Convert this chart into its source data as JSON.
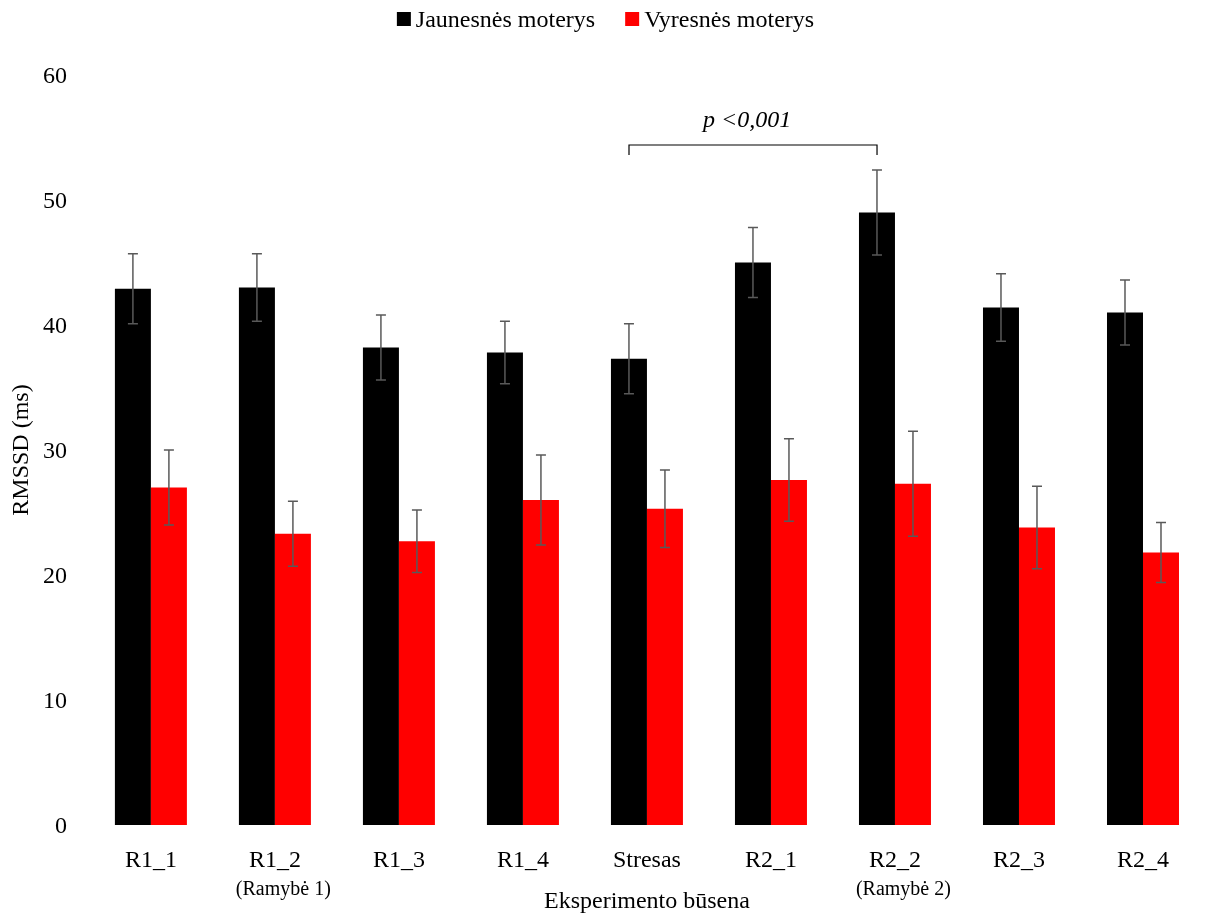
{
  "chart_data": {
    "type": "bar",
    "ylabel": "RMSSD (ms)",
    "xlabel": "Eksperimento būsena",
    "categories": [
      "R1_1",
      "R1_2",
      "R1_3",
      "R1_4",
      "Stresas",
      "R2_1",
      "R2_2",
      "R2_3",
      "R2_4"
    ],
    "series": [
      {
        "name": "Jaunesnės moterys",
        "color": "#000000",
        "values": [
          42.9,
          43.0,
          38.2,
          37.8,
          37.3,
          45.0,
          49.0,
          41.4,
          41.0
        ],
        "errors": [
          2.8,
          2.7,
          2.6,
          2.5,
          2.8,
          2.8,
          3.4,
          2.7,
          2.6
        ]
      },
      {
        "name": "Vyresnės moterys",
        "color": "#ff0000",
        "values": [
          27.0,
          23.3,
          22.7,
          26.0,
          25.3,
          27.6,
          27.3,
          23.8,
          21.8
        ],
        "errors": [
          3.0,
          2.6,
          2.5,
          3.6,
          3.1,
          3.3,
          4.2,
          3.3,
          2.4
        ]
      }
    ],
    "ylim": [
      0,
      60
    ],
    "yticks": [
      0,
      10,
      20,
      30,
      40,
      50,
      60
    ],
    "grid": false,
    "legend": "top",
    "annotations": [
      "p <0,001",
      "(Ramybė 1)",
      "(Ramybė 2)"
    ]
  }
}
